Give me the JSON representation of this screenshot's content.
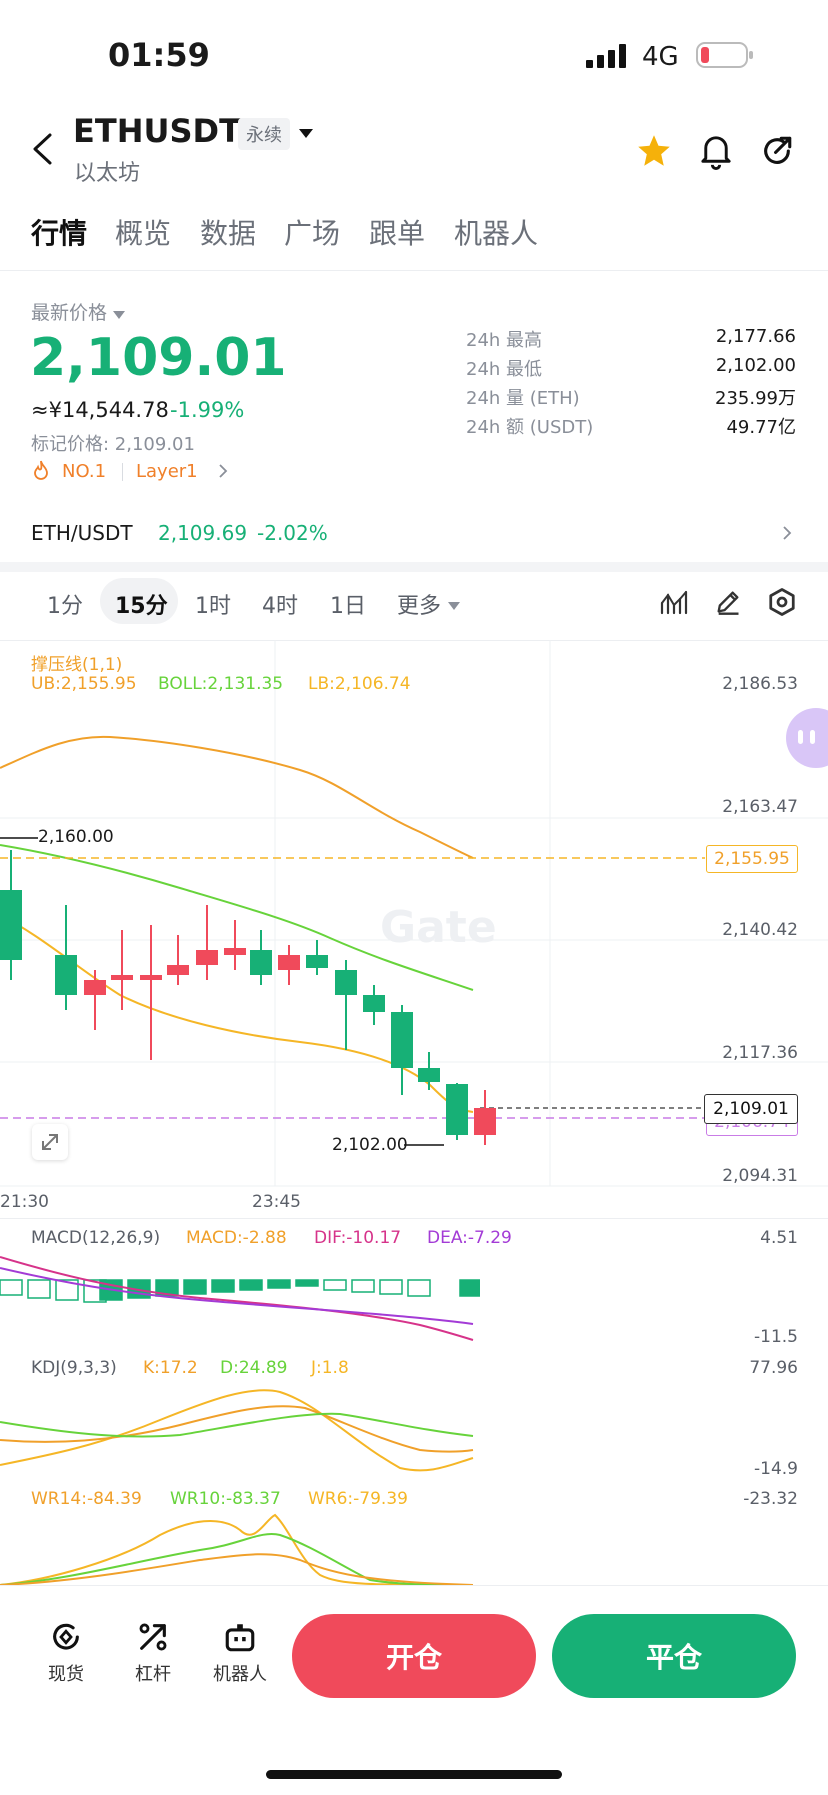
{
  "status_bar": {
    "time": "01:59",
    "network": "4G"
  },
  "header": {
    "symbol": "ETHUSDT",
    "contract_type": "永续",
    "subtitle": "以太坊"
  },
  "tabs": [
    "行情",
    "概览",
    "数据",
    "广场",
    "跟单",
    "机器人"
  ],
  "price_panel": {
    "latest_label": "最新价格",
    "price": "2,109.01",
    "cny_value": "≈¥14,544.78",
    "change": "-1.99%",
    "mark_price": "标记价格: 2,109.01",
    "rank_badge": "NO.1",
    "category": "Layer1",
    "stats": [
      {
        "label": "24h  最高",
        "value": "2,177.66"
      },
      {
        "label": "24h  最低",
        "value": "2,102.00"
      },
      {
        "label": "24h  量 (ETH)",
        "value": "235.99万"
      },
      {
        "label": "24h  额 (USDT)",
        "value": "49.77亿"
      }
    ]
  },
  "spot_row": {
    "pair": "ETH/USDT",
    "price": "2,109.69",
    "change": "-2.02%"
  },
  "timeframes": [
    "1分",
    "15分",
    "1时",
    "4时",
    "1日",
    "更多"
  ],
  "active_timeframe": "15分",
  "main_chart": {
    "indicator_title": "撑压线(1,1)",
    "ub": "UB:2,155.95",
    "boll": "BOLL:2,131.35",
    "lb": "LB:2,106.74",
    "y_labels": [
      "2,186.53",
      "2,163.47",
      "2,140.42",
      "2,117.36",
      "2,094.31"
    ],
    "high_marker": "2,160.00",
    "low_marker": "2,102.00",
    "ub_tag": "2,155.95",
    "price_tag": "2,109.01",
    "hidden_tag": "2,106.74",
    "x_labels": [
      "21:30",
      "23:45"
    ],
    "watermark": "Gate"
  },
  "macd": {
    "title": "MACD(12,26,9)",
    "macd": "MACD:-2.88",
    "dif": "DIF:-10.17",
    "dea": "DEA:-7.29",
    "y_top": "4.51",
    "y_bottom": "-11.5"
  },
  "kdj": {
    "title": "KDJ(9,3,3)",
    "k": "K:17.2",
    "d": "D:24.89",
    "j": "J:1.8",
    "y_top": "77.96",
    "y_bottom": "-14.9"
  },
  "wr": {
    "wr14": "WR14:-84.39",
    "wr10": "WR10:-83.37",
    "wr6": "WR6:-79.39",
    "y_top": "-23.32"
  },
  "bottom_bar": {
    "spot": "现货",
    "leverage": "杠杆",
    "bot": "机器人",
    "open": "开仓",
    "close": "平仓"
  },
  "colors": {
    "up": "#17b076",
    "down": "#f04a5b",
    "ub_line": "#f0a02a",
    "boll_line": "#67d33b",
    "lb_line": "#f5b626"
  }
}
